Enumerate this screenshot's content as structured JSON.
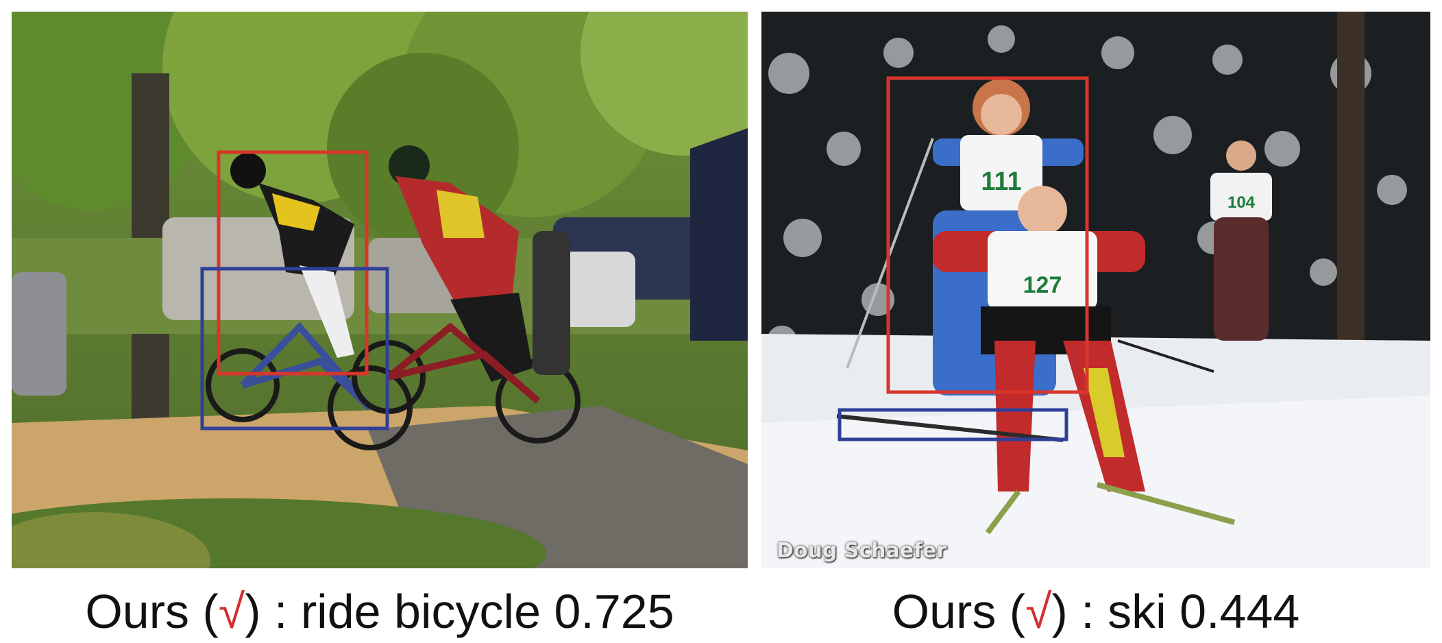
{
  "figure": {
    "left": {
      "caption_prefix": "Ours (",
      "check_mark": "√",
      "caption_suffix": ") : ride bicycle 0.725",
      "action": "ride bicycle",
      "score": 0.725,
      "human_box_color": "#d9352b",
      "object_box_color": "#2f3f9a"
    },
    "right": {
      "caption_prefix": "Ours (",
      "check_mark": "√",
      "caption_suffix": ") : ski 0.444",
      "action": "ski",
      "score": 0.444,
      "photo_credit": "Doug Schaefer",
      "bib_numbers": [
        "111",
        "104",
        "127"
      ],
      "human_box_color": "#d9352b",
      "object_box_color": "#2f3f9a"
    }
  }
}
